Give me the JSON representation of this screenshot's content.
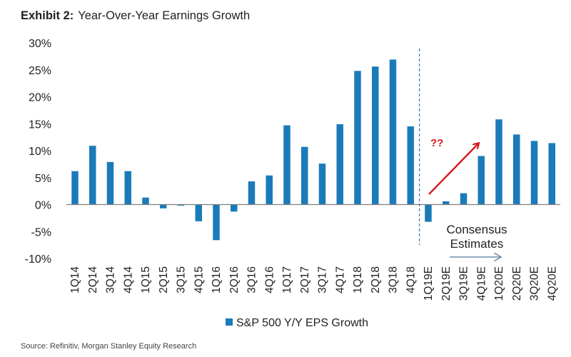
{
  "header": {
    "exhibit_label": "Exhibit 2:",
    "title": "Year-Over-Year Earnings Growth"
  },
  "source": "Source: Refinitiv, Morgan Stanley Equity Research",
  "colors": {
    "bar": "#1a7bb9",
    "axis": "#7f7f7f",
    "divider": "#4a7fb0",
    "highlight_arrow": "#d7191c",
    "estimate_arrow": "#6d8fae"
  },
  "annotations": {
    "question": "??",
    "consensus_line1": "Consensus",
    "consensus_line2": "Estimates"
  },
  "chart_data": {
    "type": "bar",
    "title": "Year-Over-Year Earnings Growth",
    "xlabel": "",
    "ylabel": "",
    "ylim": [
      -10,
      30
    ],
    "yticks": [
      30,
      25,
      20,
      15,
      10,
      5,
      0,
      -5,
      -10
    ],
    "ytick_labels": [
      "30%",
      "25%",
      "20%",
      "15%",
      "10%",
      "5%",
      "0%",
      "-5%",
      "-10%"
    ],
    "grid": false,
    "legend_position": "bottom-center",
    "categories": [
      "1Q14",
      "2Q14",
      "3Q14",
      "4Q14",
      "1Q15",
      "2Q15",
      "3Q15",
      "4Q15",
      "1Q16",
      "2Q16",
      "3Q16",
      "4Q16",
      "1Q17",
      "2Q17",
      "3Q17",
      "4Q17",
      "1Q18",
      "2Q18",
      "3Q18",
      "4Q18",
      "1Q19E",
      "2Q19E",
      "3Q19E",
      "4Q19E",
      "1Q20E",
      "2Q20E",
      "3Q20E",
      "4Q20E"
    ],
    "series": [
      {
        "name": "S&P 500 Y/Y EPS Growth",
        "values": [
          6.2,
          10.9,
          7.9,
          6.2,
          1.3,
          -0.7,
          -0.2,
          -3.1,
          -6.6,
          -1.3,
          4.3,
          5.4,
          14.7,
          10.7,
          7.6,
          14.9,
          24.8,
          25.6,
          26.9,
          14.5,
          -3.2,
          0.6,
          2.1,
          9.0,
          15.8,
          13.0,
          11.8,
          11.4
        ]
      }
    ],
    "estimates_start_category": "1Q19E",
    "annotations": [
      {
        "text": "??",
        "note": "red arrow rising from 1Q19E toward 4Q19E"
      },
      {
        "text": "Consensus Estimates",
        "note": "arrow pointing right over estimate quarters"
      }
    ]
  }
}
